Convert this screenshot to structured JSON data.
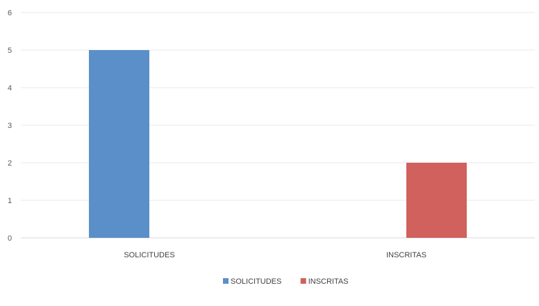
{
  "chart_data": {
    "type": "bar",
    "categories": [
      "SOLICITUDES",
      "INSCRITAS"
    ],
    "series": [
      {
        "name": "SOLICITUDES",
        "values": [
          5,
          null
        ],
        "color": "#5B8FC9"
      },
      {
        "name": "INSCRITAS",
        "values": [
          null,
          2
        ],
        "color": "#D0615C"
      }
    ],
    "title": "",
    "xlabel": "",
    "ylabel": "",
    "ylim": [
      0,
      6
    ],
    "yticks": [
      0,
      1,
      2,
      3,
      4,
      5,
      6
    ],
    "grid": true,
    "legend": "bottom"
  }
}
